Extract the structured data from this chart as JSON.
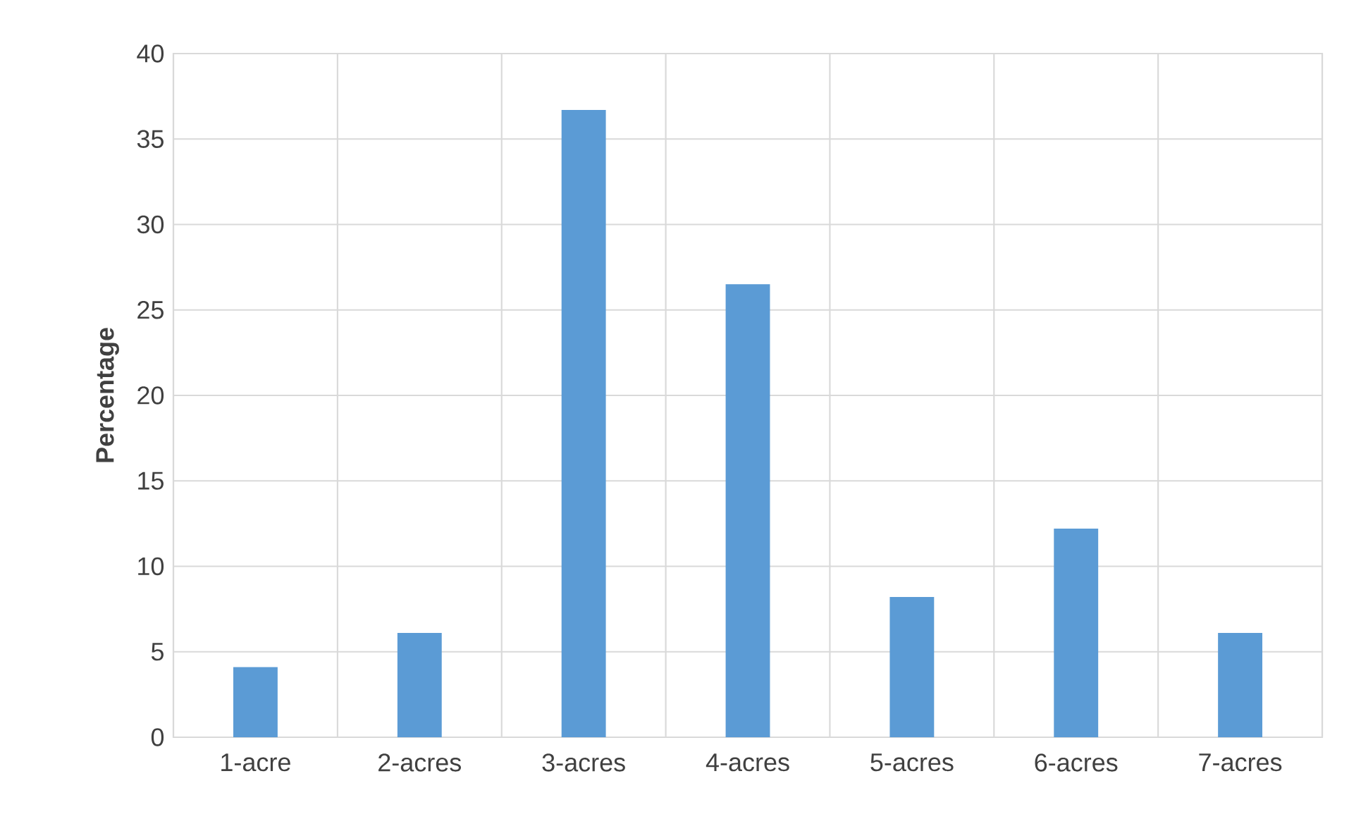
{
  "chart_data": {
    "type": "bar",
    "ylabel": "Percentage",
    "categories": [
      "1-acre",
      "2-acres",
      "3-acres",
      "4-acres",
      "5-acres",
      "6-acres",
      "7-acres"
    ],
    "values": [
      4.1,
      6.1,
      36.7,
      26.5,
      8.2,
      12.2,
      6.1
    ],
    "color": "#5b9bd5",
    "ylim": [
      0,
      40
    ],
    "yticks": [
      0,
      5,
      10,
      15,
      20,
      25,
      30,
      35,
      40
    ],
    "grid": true
  }
}
